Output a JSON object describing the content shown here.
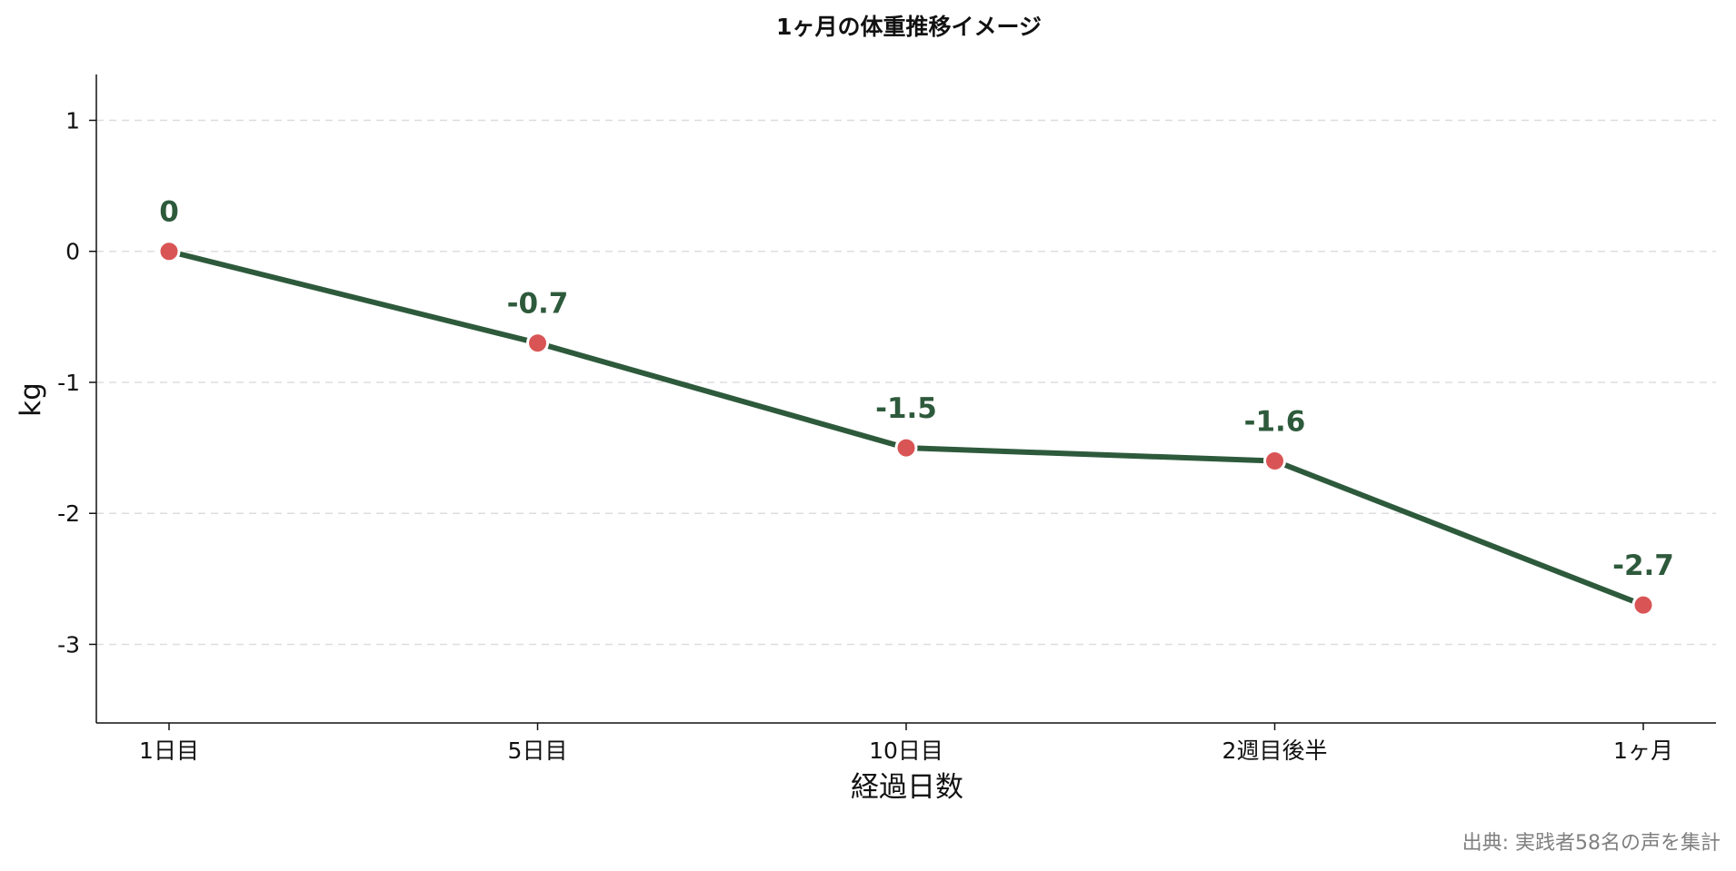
{
  "chart_data": {
    "type": "line",
    "title": "1ヶ月の体重推移イメージ",
    "xlabel": "経過日数",
    "ylabel": "kg",
    "categories": [
      "1日目",
      "5日目",
      "10日目",
      "2週目後半",
      "1ヶ月"
    ],
    "series": [
      {
        "values": [
          0,
          -0.7,
          -1.5,
          -1.6,
          -2.7
        ],
        "data_labels": [
          "0",
          "-0.7",
          "-1.5",
          "-1.6",
          "-2.7"
        ]
      }
    ],
    "ylim": [
      -3.6,
      1.35
    ],
    "yticks": [
      1,
      0,
      -1,
      -2,
      -3
    ],
    "ytick_labels": [
      "1",
      "0",
      "-1",
      "-2",
      "-3"
    ],
    "grid": "horizontal-dashed",
    "legend": "none",
    "colors": {
      "line": "#2e5a3c",
      "marker": "#d95555",
      "marker_edge": "#ffffff",
      "data_label": "#2e5a3c",
      "grid": "#dddddd",
      "axis": "#111111"
    },
    "source_note": "出典: 実践者58名の声を集計"
  }
}
